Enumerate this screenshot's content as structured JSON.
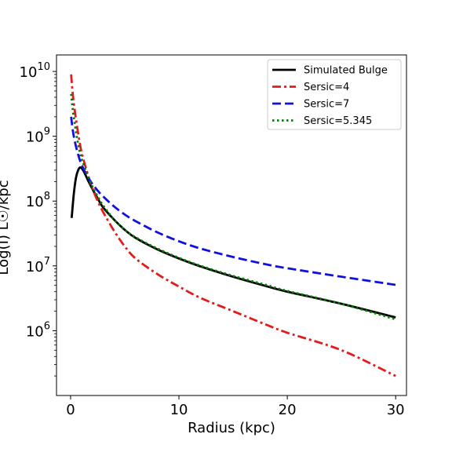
{
  "chart_data": {
    "type": "line",
    "title": "",
    "xlabel": "Radius (kpc)",
    "ylabel": "Log(I) L☉/kpc",
    "xlim": [
      -1.3,
      31.0
    ],
    "ylim": [
      100000.0,
      18000000000.0
    ],
    "yscale": "log",
    "grid": false,
    "legend_position": "top-right",
    "xticks": [
      {
        "value": 0,
        "label": "0"
      },
      {
        "value": 10,
        "label": "10"
      },
      {
        "value": 20,
        "label": "20"
      },
      {
        "value": 30,
        "label": "30"
      }
    ],
    "yticks": [
      {
        "value": 1000000,
        "base": "10",
        "exp": "6"
      },
      {
        "value": 10000000,
        "base": "10",
        "exp": "7"
      },
      {
        "value": 100000000,
        "base": "10",
        "exp": "8"
      },
      {
        "value": 1000000000,
        "base": "10",
        "exp": "9"
      },
      {
        "value": 10000000000,
        "base": "10",
        "exp": "10"
      }
    ],
    "series": [
      {
        "name": "Simulated Bulge",
        "color": "#000000",
        "dash": "solid",
        "x": [
          0.1,
          0.3,
          0.5,
          0.7,
          0.9,
          1.2,
          1.6,
          2,
          2.5,
          3,
          4,
          5,
          6,
          8,
          10,
          12,
          15,
          18,
          20,
          25,
          30
        ],
        "y": [
          55000000.0,
          130000000.0,
          230000000.0,
          300000000.0,
          330000000.0,
          290000000.0,
          210000000.0,
          155000000.0,
          110000000.0,
          80000000.0,
          52000000.0,
          36000000.0,
          27000000.0,
          18000000.0,
          13000000.0,
          9800000.0,
          6800000.0,
          4900000.0,
          4000000.0,
          2600000.0,
          1600000.0
        ]
      },
      {
        "name": "Sersic=4",
        "color": "#e41a1c",
        "dash": "dashdot",
        "x": [
          0.05,
          0.2,
          0.4,
          0.7,
          1,
          1.5,
          2,
          2.5,
          3,
          4,
          5,
          6,
          8,
          10,
          12,
          15,
          18,
          20,
          25,
          30
        ],
        "y": [
          9000000000.0,
          4500000000.0,
          2400000000.0,
          1100000000.0,
          580000000.0,
          290000000.0,
          160000000.0,
          100000000.0,
          68000000.0,
          35000000.0,
          20000000.0,
          13000000.0,
          7500000.0,
          4800000.0,
          3200000.0,
          2000000.0,
          1250000.0,
          930000.0,
          500000.0,
          200000.0
        ]
      },
      {
        "name": "Sersic=7",
        "color": "#1010e0",
        "dash": "dashed",
        "x": [
          0.05,
          0.2,
          0.4,
          0.7,
          1,
          1.5,
          2,
          2.5,
          3,
          4,
          5,
          6,
          8,
          10,
          12,
          15,
          18,
          20,
          25,
          30
        ],
        "y": [
          2000000000.0,
          1250000000.0,
          820000000.0,
          520000000.0,
          370000000.0,
          250000000.0,
          185000000.0,
          145000000.0,
          118000000.0,
          83000000.0,
          62000000.0,
          49000000.0,
          33000000.0,
          24000000.0,
          18500000.0,
          13700000.0,
          10600000.0,
          9200000.0,
          6800000.0,
          5100000.0
        ]
      },
      {
        "name": "Sersic=5.345",
        "color": "#008000",
        "dash": "dotted",
        "x": [
          0.05,
          0.2,
          0.4,
          0.7,
          1,
          1.5,
          2,
          2.5,
          3,
          4,
          5,
          6,
          8,
          10,
          12,
          15,
          18,
          20,
          25,
          30
        ],
        "y": [
          4500000000.0,
          2600000000.0,
          1500000000.0,
          750000000.0,
          460000000.0,
          270000000.0,
          170000000.0,
          118000000.0,
          86000000.0,
          52000000.0,
          36000000.0,
          27500000.0,
          18500000.0,
          13300000.0,
          10000000.0,
          7000000.0,
          5100000.0,
          4100000.0,
          2600000.0,
          1500000.0
        ]
      }
    ]
  }
}
